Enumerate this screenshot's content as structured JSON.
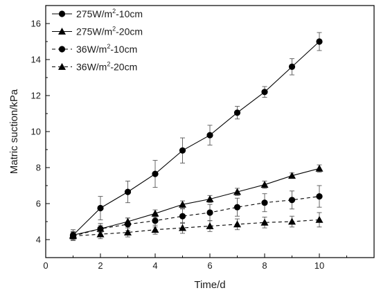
{
  "chart_data": {
    "type": "line",
    "xlabel": "Time/d",
    "ylabel": "Matric suction/kPa",
    "xlim": [
      0,
      12
    ],
    "ylim": [
      3,
      17
    ],
    "x_ticks": [
      0,
      2,
      4,
      6,
      8,
      10
    ],
    "y_ticks": [
      4,
      6,
      8,
      10,
      12,
      14,
      16
    ],
    "grid": false,
    "legend_position": "top-left",
    "x": [
      1,
      2,
      3,
      4,
      5,
      6,
      7,
      8,
      9,
      10
    ],
    "series": [
      {
        "name": "275W/m²-10cm",
        "name_parts": [
          "275W/m",
          "2",
          "-10cm"
        ],
        "marker": "circle",
        "line": "solid",
        "values": [
          4.25,
          5.75,
          6.65,
          7.65,
          8.95,
          9.8,
          11.05,
          12.2,
          13.6,
          15.0
        ],
        "errors": [
          0.3,
          0.65,
          0.6,
          0.75,
          0.7,
          0.55,
          0.35,
          0.3,
          0.45,
          0.5
        ]
      },
      {
        "name": "275W/m²-20cm",
        "name_parts": [
          "275W/m",
          "2",
          "-20cm"
        ],
        "marker": "triangle",
        "line": "solid",
        "values": [
          4.25,
          4.6,
          5.0,
          5.45,
          5.95,
          6.25,
          6.65,
          7.05,
          7.55,
          7.95
        ],
        "errors": [
          0.2,
          0.2,
          0.2,
          0.2,
          0.2,
          0.2,
          0.2,
          0.2,
          0.15,
          0.2
        ]
      },
      {
        "name": "36W/m²-10cm",
        "name_parts": [
          "36W/m",
          "2",
          "-10cm"
        ],
        "marker": "circle",
        "line": "dashed",
        "values": [
          4.2,
          4.6,
          4.85,
          5.05,
          5.3,
          5.5,
          5.8,
          6.05,
          6.2,
          6.4
        ],
        "errors": [
          0.25,
          0.3,
          0.35,
          0.35,
          0.4,
          0.45,
          0.5,
          0.5,
          0.5,
          0.6
        ]
      },
      {
        "name": "36W/m²-20cm",
        "name_parts": [
          "36W/m",
          "2",
          "-20cm"
        ],
        "marker": "triangle",
        "line": "dashed",
        "values": [
          4.2,
          4.3,
          4.4,
          4.55,
          4.65,
          4.75,
          4.85,
          4.95,
          5.0,
          5.1
        ],
        "errors": [
          0.2,
          0.25,
          0.25,
          0.25,
          0.3,
          0.3,
          0.3,
          0.3,
          0.3,
          0.4
        ]
      }
    ]
  }
}
